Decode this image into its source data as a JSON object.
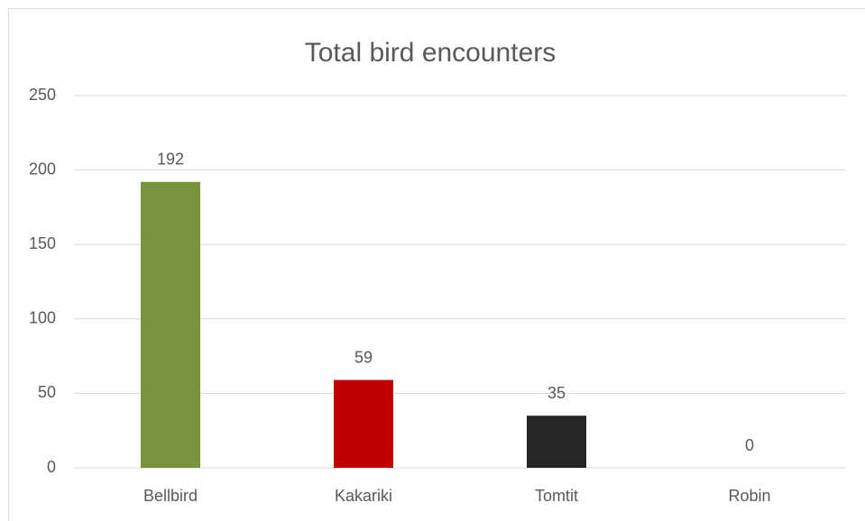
{
  "chart_data": {
    "type": "bar",
    "title": "Total bird encounters",
    "categories": [
      "Bellbird",
      "Kakariki",
      "Tomtit",
      "Robin"
    ],
    "values": [
      192,
      59,
      35,
      0
    ],
    "colors": [
      "#77933c",
      "#c00000",
      "#262626",
      "#4472c4"
    ],
    "ylim": [
      0,
      250
    ],
    "yticks": [
      0,
      50,
      100,
      150,
      200,
      250
    ],
    "grid": true
  }
}
